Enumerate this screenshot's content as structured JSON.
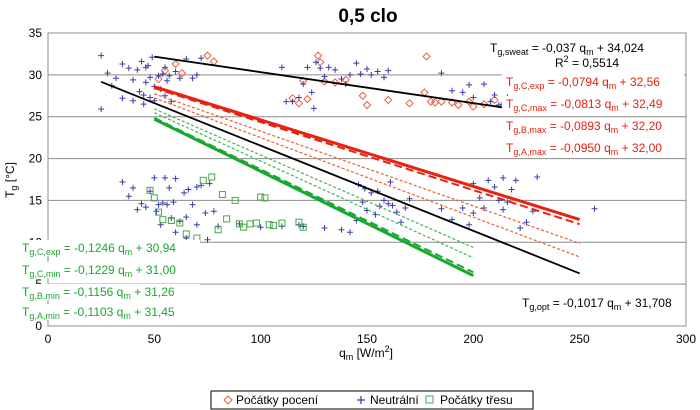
{
  "chart_data": {
    "type": "scatter",
    "title": "0,5 clo",
    "xlabel": {
      "main": "q",
      "sub": "m",
      "rest": " [W/m",
      "sup": "2",
      "end": "]"
    },
    "ylabel": {
      "main": "T",
      "sub": "g",
      "rest": " [°C]"
    },
    "xlim": [
      0,
      300
    ],
    "ylim": [
      0,
      35
    ],
    "xticks": [
      0,
      50,
      100,
      150,
      200,
      250,
      300
    ],
    "yticks": [
      0,
      5,
      10,
      15,
      20,
      25,
      30,
      35
    ],
    "grid": "horizontal",
    "legend_position": "bottom",
    "legend": [
      {
        "label": "Počátky pocení",
        "marker": "diamond",
        "color": "#e8603c"
      },
      {
        "label": "Neutrální",
        "marker": "plus",
        "color": "#3b3bb0"
      },
      {
        "label": "Počátky třesu",
        "marker": "square",
        "color": "#4aa84a"
      }
    ],
    "scatter_series": [
      {
        "label": "Počátky pocení",
        "points": [
          [
            52,
            29.5
          ],
          [
            55,
            30.5
          ],
          [
            60,
            31.3
          ],
          [
            63,
            30.2
          ],
          [
            75,
            32.3
          ],
          [
            78,
            31.6
          ],
          [
            115,
            27.2
          ],
          [
            118,
            26.6
          ],
          [
            120,
            29.3
          ],
          [
            122,
            27.1
          ],
          [
            127,
            32.3
          ],
          [
            128,
            31.5
          ],
          [
            130,
            29.2
          ],
          [
            135,
            29.1
          ],
          [
            140,
            29.4
          ],
          [
            148,
            27.5
          ],
          [
            150,
            26.4
          ],
          [
            160,
            27.0
          ],
          [
            170,
            26.6
          ],
          [
            177,
            27.9
          ],
          [
            178,
            32.2
          ],
          [
            180,
            26.8
          ],
          [
            182,
            26.7
          ],
          [
            185,
            26.8
          ],
          [
            190,
            26.7
          ],
          [
            193,
            26.4
          ],
          [
            198,
            26.8
          ],
          [
            200,
            26.2
          ],
          [
            205,
            26.5
          ],
          [
            210,
            27.0
          ],
          [
            215,
            26.7
          ],
          [
            218,
            26.8
          ]
        ]
      },
      {
        "label": "Neutrální",
        "points": [
          [
            25,
            32.3
          ],
          [
            28,
            30.2
          ],
          [
            30,
            28.7
          ],
          [
            32,
            29.6
          ],
          [
            35,
            27.2
          ],
          [
            38,
            30.8
          ],
          [
            40,
            26.9
          ],
          [
            40,
            29.4
          ],
          [
            42,
            30.6
          ],
          [
            43,
            28.0
          ],
          [
            45,
            27.6
          ],
          [
            45,
            26.5
          ],
          [
            46,
            29.1
          ],
          [
            47,
            31.1
          ],
          [
            48,
            29.7
          ],
          [
            48,
            27.3
          ],
          [
            50,
            26.9
          ],
          [
            50,
            28.6
          ],
          [
            52,
            29.9
          ],
          [
            53,
            28.3
          ],
          [
            55,
            27.5
          ],
          [
            55,
            30.9
          ],
          [
            57,
            29.9
          ],
          [
            58,
            26.8
          ],
          [
            60,
            30.4
          ],
          [
            62,
            29.6
          ],
          [
            65,
            31.9
          ],
          [
            68,
            29.6
          ],
          [
            70,
            30.0
          ],
          [
            72,
            32.0
          ],
          [
            25,
            25.9
          ],
          [
            35,
            31.3
          ],
          [
            44,
            31.6
          ],
          [
            46,
            30.9
          ],
          [
            49,
            32.1
          ],
          [
            54,
            30.1
          ],
          [
            56,
            29.3
          ],
          [
            110,
            30.9
          ],
          [
            112,
            26.8
          ],
          [
            115,
            26.8
          ],
          [
            118,
            27.3
          ],
          [
            120,
            28.9
          ],
          [
            122,
            30.9
          ],
          [
            124,
            27.9
          ],
          [
            125,
            26.0
          ],
          [
            126,
            31.5
          ],
          [
            128,
            30.8
          ],
          [
            130,
            29.8
          ],
          [
            132,
            30.9
          ],
          [
            135,
            30.6
          ],
          [
            138,
            29.5
          ],
          [
            140,
            28.9
          ],
          [
            142,
            30.0
          ],
          [
            145,
            31.4
          ],
          [
            147,
            30.1
          ],
          [
            150,
            30.7
          ],
          [
            152,
            30.0
          ],
          [
            155,
            30.4
          ],
          [
            158,
            29.7
          ],
          [
            160,
            30.5
          ],
          [
            185,
            30.2
          ],
          [
            190,
            28.1
          ],
          [
            195,
            27.9
          ],
          [
            198,
            28.8
          ],
          [
            200,
            27.3
          ],
          [
            205,
            28.9
          ],
          [
            208,
            26.8
          ],
          [
            210,
            27.6
          ],
          [
            212,
            26.4
          ],
          [
            214,
            26.5
          ],
          [
            216,
            27.3
          ],
          [
            218,
            26.6
          ],
          [
            35,
            17.2
          ],
          [
            38,
            15.5
          ],
          [
            40,
            16.5
          ],
          [
            42,
            13.9
          ],
          [
            44,
            14.6
          ],
          [
            46,
            14.2
          ],
          [
            48,
            16.1
          ],
          [
            50,
            17.7
          ],
          [
            51,
            13.7
          ],
          [
            52,
            14.5
          ],
          [
            53,
            12.1
          ],
          [
            54,
            14.7
          ],
          [
            55,
            17.7
          ],
          [
            56,
            14.5
          ],
          [
            57,
            16.5
          ],
          [
            58,
            12.9
          ],
          [
            59,
            14.8
          ],
          [
            60,
            17.6
          ],
          [
            62,
            12.5
          ],
          [
            64,
            15.9
          ],
          [
            65,
            13.0
          ],
          [
            66,
            16.3
          ],
          [
            68,
            14.5
          ],
          [
            70,
            16.6
          ],
          [
            72,
            16.8
          ],
          [
            74,
            13.5
          ],
          [
            76,
            17.0
          ],
          [
            78,
            13.7
          ],
          [
            60,
            11.2
          ],
          [
            65,
            10.5
          ],
          [
            70,
            12.1
          ],
          [
            75,
            10.3
          ],
          [
            80,
            11.9
          ],
          [
            90,
            12.2
          ],
          [
            100,
            11.8
          ],
          [
            110,
            11.9
          ],
          [
            118,
            12.1
          ],
          [
            120,
            11.9
          ],
          [
            130,
            11.7
          ],
          [
            138,
            11.5
          ],
          [
            142,
            11.2
          ],
          [
            145,
            12.6
          ],
          [
            148,
            14.8
          ],
          [
            150,
            13.8
          ],
          [
            152,
            15.9
          ],
          [
            154,
            13.3
          ],
          [
            156,
            14.3
          ],
          [
            158,
            15.0
          ],
          [
            160,
            14.6
          ],
          [
            162,
            14.4
          ],
          [
            164,
            13.6
          ],
          [
            166,
            12.4
          ],
          [
            168,
            14.1
          ],
          [
            170,
            15.2
          ],
          [
            146,
            16.9
          ],
          [
            149,
            16.4
          ],
          [
            155,
            16.1
          ],
          [
            161,
            17.2
          ],
          [
            185,
            14.0
          ],
          [
            190,
            12.7
          ],
          [
            195,
            14.1
          ],
          [
            198,
            12.1
          ],
          [
            200,
            13.5
          ],
          [
            203,
            15.3
          ],
          [
            205,
            14.1
          ],
          [
            207,
            17.4
          ],
          [
            210,
            16.6
          ],
          [
            212,
            15.0
          ],
          [
            214,
            13.9
          ],
          [
            216,
            14.8
          ],
          [
            218,
            16.3
          ],
          [
            220,
            17.4
          ],
          [
            222,
            11.7
          ],
          [
            225,
            12.4
          ],
          [
            228,
            13.7
          ],
          [
            230,
            17.8
          ],
          [
            214,
            17.7
          ],
          [
            200,
            17.0
          ],
          [
            257,
            14.0
          ]
        ]
      },
      {
        "label": "Počátky třesu",
        "points": [
          [
            48,
            16.2
          ],
          [
            50,
            15.3
          ],
          [
            52,
            13.6
          ],
          [
            54,
            12.7
          ],
          [
            58,
            12.6
          ],
          [
            62,
            12.3
          ],
          [
            65,
            11.0
          ],
          [
            70,
            10.5
          ],
          [
            73,
            17.4
          ],
          [
            77,
            17.8
          ],
          [
            80,
            11.5
          ],
          [
            82,
            15.7
          ],
          [
            84,
            12.8
          ],
          [
            88,
            15.0
          ],
          [
            90,
            12.2
          ],
          [
            92,
            11.8
          ],
          [
            95,
            12.2
          ],
          [
            98,
            12.3
          ],
          [
            100,
            15.4
          ],
          [
            102,
            15.3
          ],
          [
            104,
            12.1
          ],
          [
            106,
            12.0
          ],
          [
            110,
            12.3
          ],
          [
            118,
            12.4
          ],
          [
            120,
            11.8
          ]
        ]
      }
    ],
    "trend_lines": [
      {
        "name": "T_g,sweat",
        "x": [
          50,
          220
        ],
        "color": "#000000",
        "style": "solid",
        "width": 1.8,
        "slope": -0.037,
        "intercept": 34.024
      },
      {
        "name": "T_g,opt",
        "x": [
          25,
          250
        ],
        "color": "#000000",
        "style": "solid",
        "width": 1.8,
        "slope": -0.1017,
        "intercept": 31.708
      },
      {
        "name": "T_g,C,exp (hot)",
        "x": [
          50,
          250
        ],
        "color": "#e8220f",
        "style": "solid",
        "width": 3,
        "slope": -0.0794,
        "intercept": 32.56
      },
      {
        "name": "T_g,C,max",
        "x": [
          50,
          250
        ],
        "color": "#e8220f",
        "style": "dashed",
        "width": 2,
        "slope": -0.0813,
        "intercept": 32.49
      },
      {
        "name": "T_g,B,max",
        "x": [
          50,
          250
        ],
        "color": "#e86030",
        "style": "dotted",
        "width": 1.2,
        "slope": -0.0893,
        "intercept": 32.2
      },
      {
        "name": "T_g,A,max",
        "x": [
          50,
          250
        ],
        "color": "#e86030",
        "style": "dotted",
        "width": 1.2,
        "slope": -0.095,
        "intercept": 32.0
      },
      {
        "name": "T_g,C,exp (cold)",
        "x": [
          50,
          200
        ],
        "color": "#1aa830",
        "style": "solid",
        "width": 3,
        "slope": -0.1246,
        "intercept": 30.94
      },
      {
        "name": "T_g,C,min",
        "x": [
          50,
          200
        ],
        "color": "#1aa830",
        "style": "dashed",
        "width": 2,
        "slope": -0.1229,
        "intercept": 31.0
      },
      {
        "name": "T_g,B,min",
        "x": [
          50,
          200
        ],
        "color": "#3cb850",
        "style": "dotted",
        "width": 1.2,
        "slope": -0.1156,
        "intercept": 31.26
      },
      {
        "name": "T_g,A,min",
        "x": [
          50,
          200
        ],
        "color": "#3cb850",
        "style": "dotted",
        "width": 1.2,
        "slope": -0.1103,
        "intercept": 31.45
      }
    ],
    "annotations": {
      "sweat": {
        "t": "T",
        "sub": "g,sweat",
        "rest": " = -0,037 q",
        "qsub": "m",
        "tail": " + 34,024",
        "color": "#000000"
      },
      "r2": {
        "r": "R",
        "sup": "2",
        "rest": " = 0,5514",
        "color": "#000000"
      },
      "opt": {
        "t": "T",
        "sub": "g,opt",
        "rest": " = -0,1017 q",
        "qsub": "m",
        "tail": " + 31,708",
        "color": "#000000"
      },
      "hot_cexp": {
        "t": "T",
        "sub": "g,C,exp",
        "rest": " = -0,0794 q",
        "qsub": "m",
        "tail": " + 32,56",
        "color": "#e8220f"
      },
      "hot_cmax": {
        "t": "T",
        "sub": "g,C,max",
        "rest": " = -0,0813 q",
        "qsub": "m",
        "tail": " + 32,49",
        "color": "#e8220f"
      },
      "hot_bmax": {
        "t": "T",
        "sub": "g,B,max",
        "rest": " = -0,0893 q",
        "qsub": "m",
        "tail": " + 32,20",
        "color": "#e8220f"
      },
      "hot_amax": {
        "t": "T",
        "sub": "g,A,max",
        "rest": " = -0,0950 q",
        "qsub": "m",
        "tail": " + 32,00",
        "color": "#e8220f"
      },
      "cold_cexp": {
        "t": "T",
        "sub": "g,C,exp",
        "rest": " = -0,1246 q",
        "qsub": "m",
        "tail": " + 30,94",
        "color": "#1aa830"
      },
      "cold_cmin": {
        "t": "T",
        "sub": "g,C,min",
        "rest": " = -0,1229 q",
        "qsub": "m",
        "tail": " + 31,00",
        "color": "#1aa830"
      },
      "cold_bmin": {
        "t": "T",
        "sub": "g,B,min",
        "rest": " = -0,1156 q",
        "qsub": "m",
        "tail": " + 31,26",
        "color": "#1aa830"
      },
      "cold_amin": {
        "t": "T",
        "sub": "g,A,min",
        "rest": " = -0,1103 q",
        "qsub": "m",
        "tail": " + 31,45",
        "color": "#1aa830"
      }
    }
  }
}
